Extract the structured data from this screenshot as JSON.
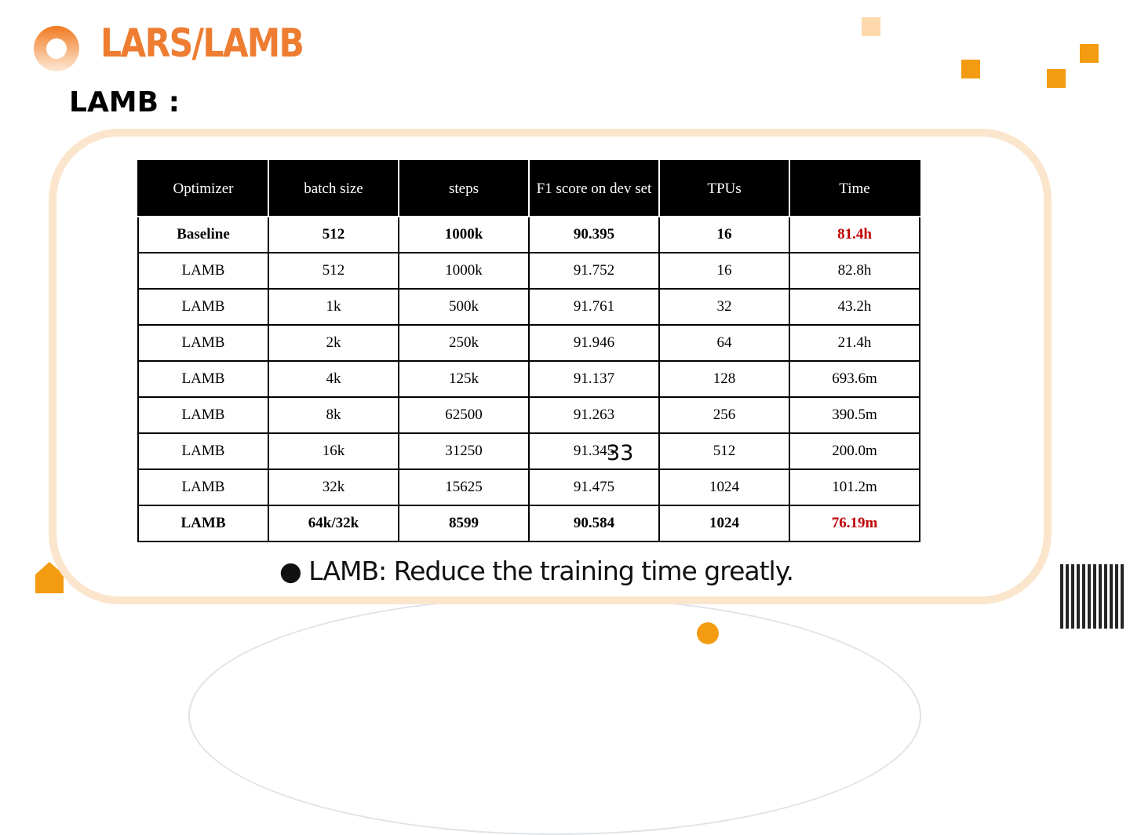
{
  "header": {
    "title": "LARS/LAMB",
    "subtitle": "LAMB :"
  },
  "table": {
    "columns": [
      "Optimizer",
      "batch size",
      "steps",
      "F1 score on dev set",
      "TPUs",
      "Time"
    ],
    "rows": [
      {
        "cells": [
          "Baseline",
          "512",
          "1000k",
          "90.395",
          "16",
          "81.4h"
        ],
        "bold": true,
        "time_red": true
      },
      {
        "cells": [
          "LAMB",
          "512",
          "1000k",
          "91.752",
          "16",
          "82.8h"
        ]
      },
      {
        "cells": [
          "LAMB",
          "1k",
          "500k",
          "91.761",
          "32",
          "43.2h"
        ]
      },
      {
        "cells": [
          "LAMB",
          "2k",
          "250k",
          "91.946",
          "64",
          "21.4h"
        ]
      },
      {
        "cells": [
          "LAMB",
          "4k",
          "125k",
          "91.137",
          "128",
          "693.6m"
        ]
      },
      {
        "cells": [
          "LAMB",
          "8k",
          "62500",
          "91.263",
          "256",
          "390.5m"
        ]
      },
      {
        "cells": [
          "LAMB",
          "16k",
          "31250",
          "91.345",
          "512",
          "200.0m"
        ]
      },
      {
        "cells": [
          "LAMB",
          "32k",
          "15625",
          "91.475",
          "1024",
          "101.2m"
        ]
      },
      {
        "cells": [
          "LAMB",
          "64k/32k",
          "8599",
          "90.584",
          "1024",
          "76.19m"
        ],
        "bold": true,
        "time_red": true
      }
    ]
  },
  "bullet": "LAMB: Reduce the training time greatly.",
  "page_number": "33",
  "colors": {
    "accent": "#ee7d31",
    "frame": "#fbe5cc",
    "highlight": "#c00000"
  }
}
